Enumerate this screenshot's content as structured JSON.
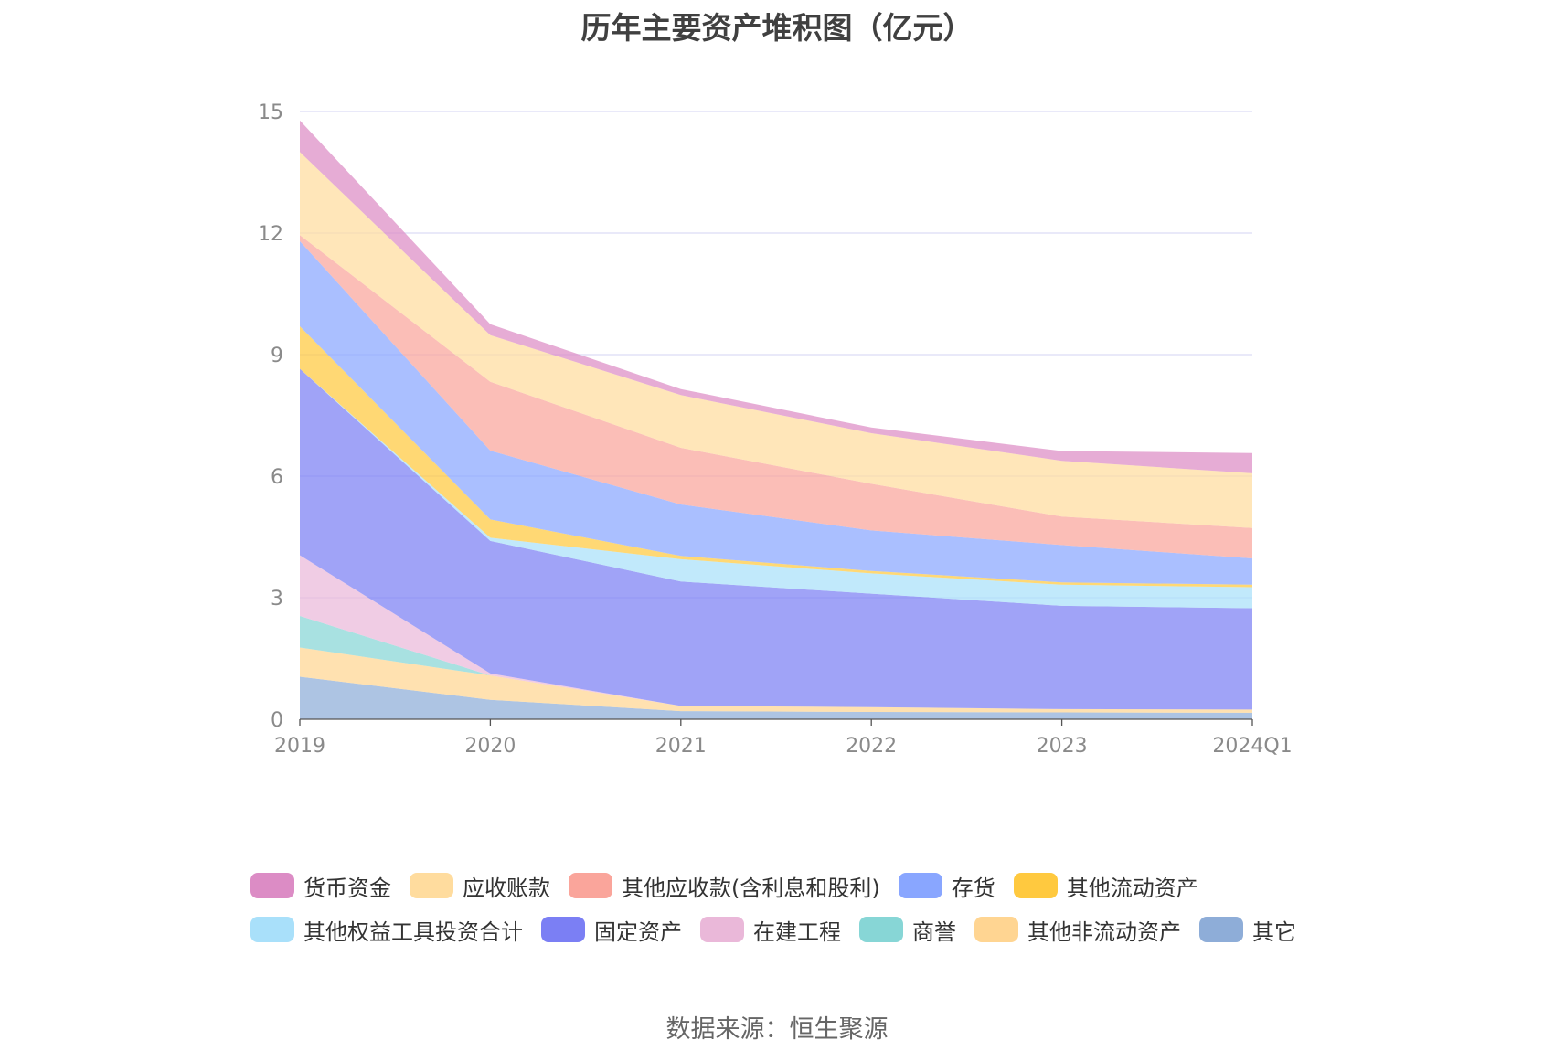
{
  "chart_data": {
    "type": "area",
    "stacked": true,
    "title": "历年主要资产堆积图（亿元）",
    "xlabel": "",
    "ylabel": "",
    "categories": [
      "2019",
      "2020",
      "2021",
      "2022",
      "2023",
      "2024Q1"
    ],
    "y_ticks": [
      "0",
      "3",
      "6",
      "9",
      "12",
      "15"
    ],
    "ylim": [
      0,
      15
    ],
    "grid": true,
    "legend_position": "bottom",
    "series": [
      {
        "name": "其它",
        "color": "#8eadd8",
        "values": [
          1.05,
          0.48,
          0.2,
          0.18,
          0.17,
          0.16
        ]
      },
      {
        "name": "其他非流动资产",
        "color": "#ffd592",
        "values": [
          0.72,
          0.6,
          0.13,
          0.12,
          0.08,
          0.08
        ]
      },
      {
        "name": "商誉",
        "color": "#87d6d6",
        "values": [
          0.78,
          0.0,
          0.0,
          0.0,
          0.0,
          0.0
        ]
      },
      {
        "name": "在建工程",
        "color": "#eab8d9",
        "values": [
          1.5,
          0.05,
          0.0,
          0.0,
          0.0,
          0.0
        ]
      },
      {
        "name": "固定资产",
        "color": "#7b7ff4",
        "values": [
          4.6,
          3.27,
          3.07,
          2.8,
          2.55,
          2.5
        ]
      },
      {
        "name": "其他权益工具投资合计",
        "color": "#a9e0fa",
        "values": [
          0.0,
          0.08,
          0.55,
          0.5,
          0.52,
          0.52
        ]
      },
      {
        "name": "其他流动资产",
        "color": "#ffc93f",
        "values": [
          1.05,
          0.45,
          0.08,
          0.06,
          0.06,
          0.06
        ]
      },
      {
        "name": "存货",
        "color": "#89a6ff",
        "values": [
          2.1,
          1.7,
          1.27,
          1.0,
          0.92,
          0.65
        ]
      },
      {
        "name": "其他应收款(含利息和股利)",
        "color": "#faa59b",
        "values": [
          0.15,
          1.7,
          1.4,
          1.15,
          0.7,
          0.75
        ]
      },
      {
        "name": "应收账款",
        "color": "#ffdc9e",
        "values": [
          2.05,
          1.15,
          1.3,
          1.25,
          1.38,
          1.35
        ]
      },
      {
        "name": "货币资金",
        "color": "#dc8cc5",
        "values": [
          0.78,
          0.27,
          0.15,
          0.14,
          0.24,
          0.5
        ]
      }
    ]
  },
  "legend_rows": [
    [
      "货币资金",
      "应收账款",
      "其他应收款(含利息和股利)",
      "存货",
      "其他流动资产"
    ],
    [
      "其他权益工具投资合计",
      "固定资产",
      "在建工程",
      "商誉",
      "其他非流动资产",
      "其它"
    ]
  ],
  "source": "数据来源：恒生聚源"
}
